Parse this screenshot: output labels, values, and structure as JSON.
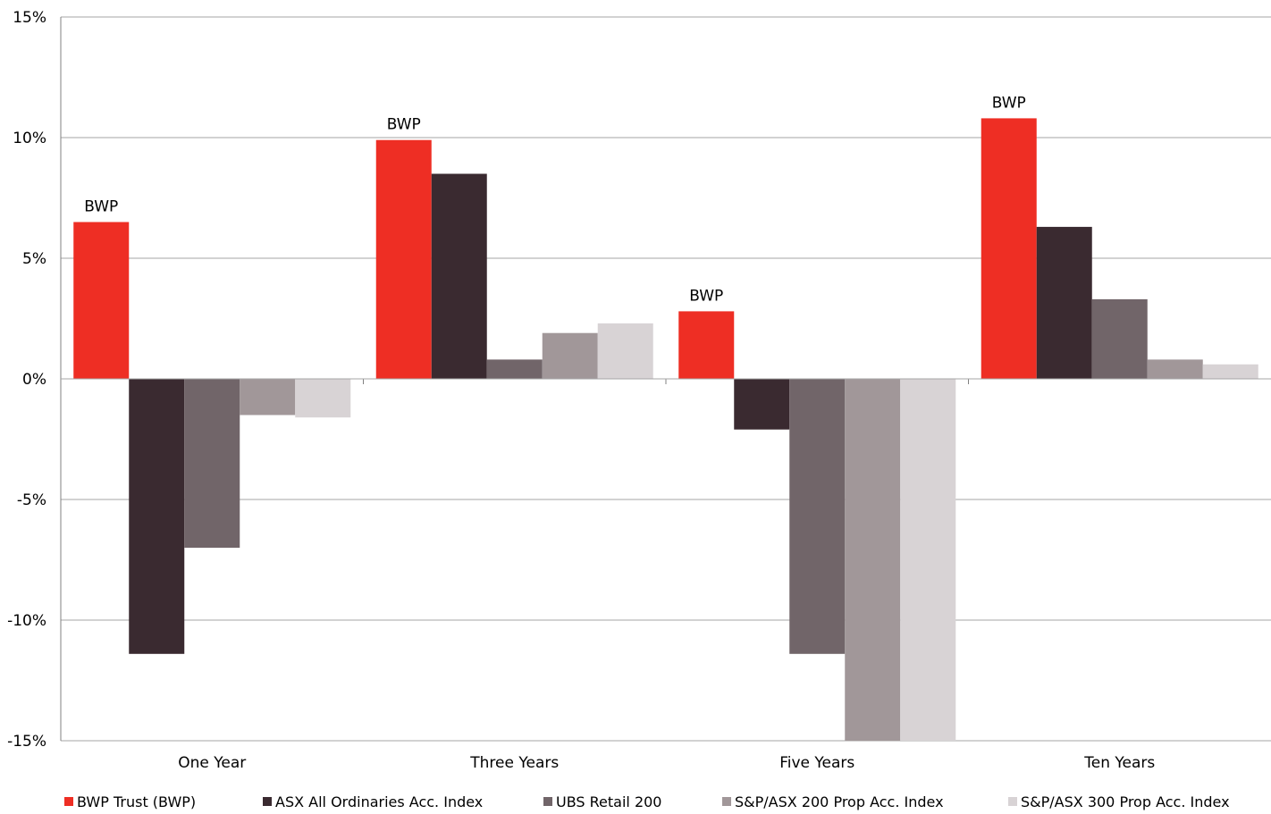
{
  "chart_data": {
    "type": "bar",
    "categories": [
      "One Year",
      "Three Years",
      "Five Years",
      "Ten Years"
    ],
    "series": [
      {
        "name": "BWP Trust (BWP)",
        "color": "#EE2E24",
        "values": [
          6.5,
          9.9,
          2.8,
          10.8
        ]
      },
      {
        "name": "ASX All Ordinaries Acc. Index",
        "color": "#3A2A30",
        "values": [
          -11.4,
          8.5,
          -2.1,
          6.3
        ]
      },
      {
        "name": "UBS Retail 200",
        "color": "#716569",
        "values": [
          -7.0,
          0.8,
          -11.4,
          3.3
        ]
      },
      {
        "name": "S&P/ASX 200 Prop Acc. Index",
        "color": "#A19799",
        "values": [
          -1.5,
          1.9,
          -15.0,
          0.8
        ]
      },
      {
        "name": "S&P/ASX 300 Prop Acc. Index",
        "color": "#D8D3D5",
        "values": [
          -1.6,
          2.3,
          -15.0,
          0.6
        ]
      }
    ],
    "y_ticks": [
      "15%",
      "10%",
      "5%",
      "0%",
      "-5%",
      "-10%",
      "-15%"
    ],
    "y_tick_values": [
      15,
      10,
      5,
      0,
      -5,
      -10,
      -15
    ],
    "ylim": [
      -15,
      15
    ],
    "annotations": [
      "BWP",
      "BWP",
      "BWP",
      "BWP"
    ],
    "grid": true,
    "legend_position": "bottom"
  }
}
